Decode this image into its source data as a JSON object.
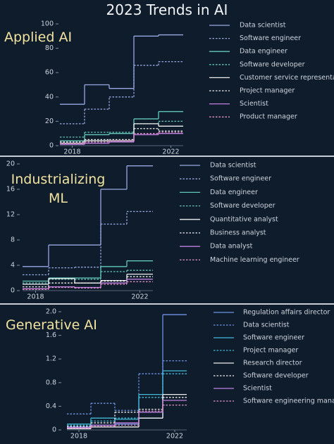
{
  "title": "2023 Trends in AI",
  "chart_data": [
    {
      "type": "step",
      "title": "Applied AI",
      "x": [
        2018,
        2019,
        2020,
        2021,
        2022
      ],
      "xlim": [
        2017.5,
        2022.5
      ],
      "xticks": [
        2018,
        2022
      ],
      "ylim": [
        0,
        100
      ],
      "yticks": [
        0,
        20,
        40,
        60,
        80,
        100
      ],
      "series": [
        {
          "name": "Data scientist",
          "color": "#9aa8e6",
          "dashed": false,
          "values": [
            34,
            50,
            47,
            90,
            91
          ]
        },
        {
          "name": "Software engineer",
          "color": "#9aa8e6",
          "dashed": true,
          "values": [
            18,
            30,
            40,
            66,
            69
          ]
        },
        {
          "name": "Data engineer",
          "color": "#62c9b9",
          "dashed": false,
          "values": [
            4,
            9,
            10,
            22,
            28
          ]
        },
        {
          "name": "Software developer",
          "color": "#62c9b9",
          "dashed": true,
          "values": [
            7,
            11,
            11,
            18,
            20
          ]
        },
        {
          "name": "Customer service representative",
          "color": "#f0f0f0",
          "dashed": false,
          "values": [
            2,
            4,
            4,
            18,
            16
          ]
        },
        {
          "name": "Project manager",
          "color": "#f0f0f0",
          "dashed": true,
          "values": [
            3,
            5,
            5,
            14,
            12
          ]
        },
        {
          "name": "Scientist",
          "color": "#c27fe0",
          "dashed": false,
          "values": [
            1,
            2,
            3,
            9,
            10
          ]
        },
        {
          "name": "Product manager",
          "color": "#e493c8",
          "dashed": true,
          "values": [
            2,
            3,
            4,
            10,
            11
          ]
        }
      ]
    },
    {
      "type": "step",
      "title": "Industrializing ML",
      "x": [
        2018,
        2019,
        2020,
        2021,
        2022
      ],
      "xlim": [
        2017.5,
        2022.5
      ],
      "xticks": [
        2018,
        2022
      ],
      "ylim": [
        0,
        20
      ],
      "yticks": [
        0,
        4,
        8,
        12,
        16,
        20
      ],
      "series": [
        {
          "name": "Data scientist",
          "color": "#9aa8e6",
          "dashed": false,
          "values": [
            3.8,
            7.2,
            7.2,
            16,
            19.7
          ]
        },
        {
          "name": "Software engineer",
          "color": "#9aa8e6",
          "dashed": true,
          "values": [
            2.5,
            3.6,
            3.7,
            10.5,
            12.5
          ]
        },
        {
          "name": "Data engineer",
          "color": "#62c9b9",
          "dashed": false,
          "values": [
            1.5,
            2.0,
            2.0,
            3.8,
            4.7
          ]
        },
        {
          "name": "Software developer",
          "color": "#62c9b9",
          "dashed": true,
          "values": [
            1.2,
            1.8,
            1.8,
            3.0,
            3.2
          ]
        },
        {
          "name": "Quantitative analyst",
          "color": "#f0f0f0",
          "dashed": false,
          "values": [
            1.0,
            1.9,
            1.2,
            1.6,
            2.6
          ]
        },
        {
          "name": "Business analyst",
          "color": "#f0f0f0",
          "dashed": true,
          "values": [
            0.6,
            1.2,
            1.2,
            1.5,
            2.2
          ]
        },
        {
          "name": "Data analyst",
          "color": "#c27fe0",
          "dashed": false,
          "values": [
            0.3,
            0.6,
            0.5,
            1.2,
            1.8
          ]
        },
        {
          "name": "Machine learning engineer",
          "color": "#e493c8",
          "dashed": true,
          "values": [
            0.2,
            0.5,
            0.4,
            1.0,
            1.4
          ]
        }
      ]
    },
    {
      "type": "step",
      "title": "Generative AI",
      "x": [
        2018,
        2019,
        2020,
        2021,
        2022
      ],
      "xlim": [
        2017.5,
        2022.5
      ],
      "xticks": [
        2018,
        2022
      ],
      "ylim": [
        0,
        2
      ],
      "yticks": [
        0,
        0.4,
        0.8,
        1.2,
        1.6,
        {
          "value": 2,
          "label": "2.0"
        }
      ],
      "series": [
        {
          "name": "Regulation affairs director",
          "color": "#6f92e4",
          "dashed": false,
          "values": [
            0.05,
            0.08,
            0.1,
            0.2,
            1.95
          ]
        },
        {
          "name": "Data scientist",
          "color": "#6f92e4",
          "dashed": true,
          "values": [
            0.27,
            0.45,
            0.33,
            0.95,
            1.17
          ]
        },
        {
          "name": "Software engineer",
          "color": "#42b9d9",
          "dashed": false,
          "values": [
            0.1,
            0.2,
            0.18,
            0.6,
            1.0
          ]
        },
        {
          "name": "Project manager",
          "color": "#42b9d9",
          "dashed": true,
          "values": [
            0.08,
            0.15,
            0.2,
            0.55,
            0.95
          ]
        },
        {
          "name": "Research director",
          "color": "#f0f0f0",
          "dashed": false,
          "values": [
            0.02,
            0.05,
            0.05,
            0.2,
            0.6
          ]
        },
        {
          "name": "Software developer",
          "color": "#f0f0f0",
          "dashed": true,
          "values": [
            0.06,
            0.12,
            0.3,
            0.35,
            0.55
          ]
        },
        {
          "name": "Scientist",
          "color": "#c27fe0",
          "dashed": false,
          "values": [
            0.04,
            0.08,
            0.12,
            0.3,
            0.5
          ]
        },
        {
          "name": "Software engineering manager",
          "color": "#e493c8",
          "dashed": true,
          "values": [
            0.03,
            0.06,
            0.08,
            0.32,
            0.42
          ]
        }
      ]
    }
  ]
}
